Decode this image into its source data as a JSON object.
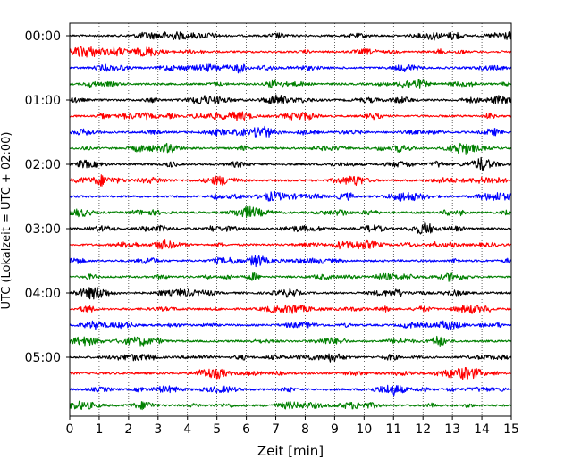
{
  "chart_data": {
    "type": "line",
    "title": "",
    "xlabel": "Zeit  [min]",
    "ylabel": "UTC (Lokalzeit = UTC + 02:00)",
    "xlim": [
      0,
      15
    ],
    "x_ticks": [
      "0",
      "1",
      "2",
      "3",
      "4",
      "5",
      "6",
      "7",
      "8",
      "9",
      "10",
      "11",
      "12",
      "13",
      "14",
      "15"
    ],
    "y_tick_labels": [
      "00:00",
      "01:00",
      "02:00",
      "03:00",
      "04:00",
      "05:00"
    ],
    "y_tick_rows": [
      0,
      4,
      8,
      12,
      16,
      20
    ],
    "row_interval_minutes": 15,
    "row_count": 24,
    "grid": "vertical dotted",
    "legend": "none",
    "series_colors": [
      "#000000",
      "#ff0000",
      "#0000ff",
      "#008000"
    ]
  }
}
